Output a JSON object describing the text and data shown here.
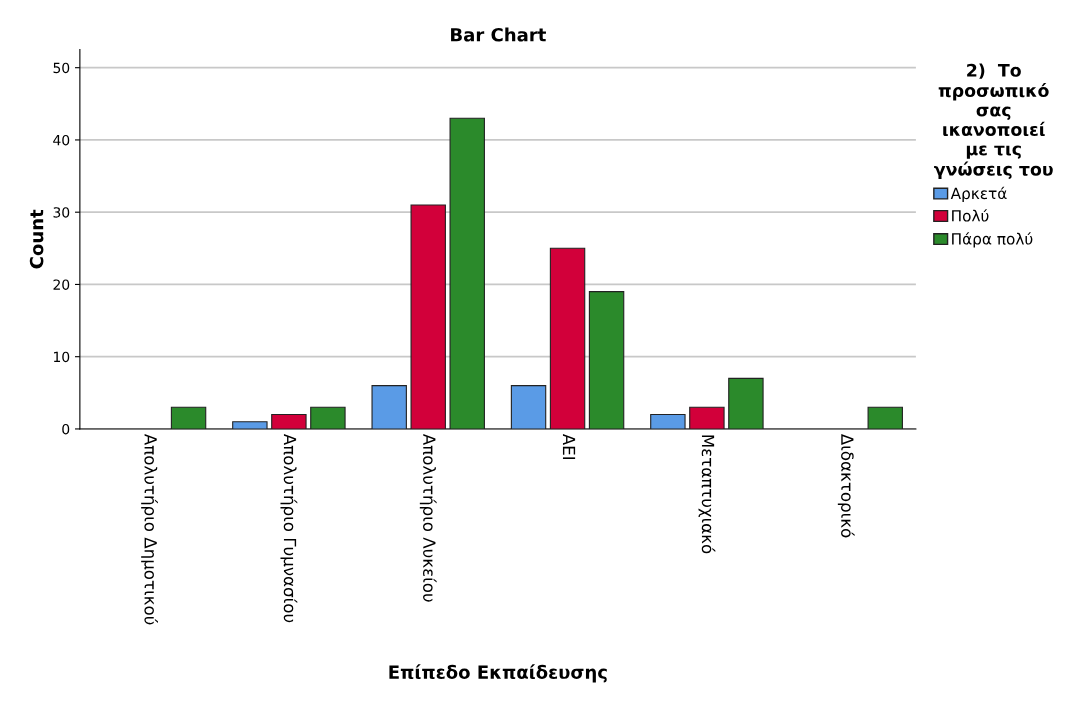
{
  "chart_data": {
    "type": "bar",
    "title": "Bar Chart",
    "xlabel": "Επίπεδο Εκπαίδευσης",
    "ylabel": "Count",
    "legend_title": "2)  Το\nπροσωπικό\nσας\nικανοποιεί\nμε τις\nγνώσεις του",
    "categories": [
      "Απολυτήριο Δημοτικού",
      "Απολυτήριο Γυμνασίου",
      "Απολυτήριο Λυκείου",
      "ΑΕΙ",
      "Μεταπτυχιακό",
      "Διδακτορικό"
    ],
    "series": [
      {
        "name": "Αρκετά",
        "color": "#5a9be6",
        "values": [
          null,
          1,
          6,
          6,
          2,
          null
        ]
      },
      {
        "name": "Πολύ",
        "color": "#d2003a",
        "values": [
          null,
          2,
          31,
          25,
          3,
          null
        ]
      },
      {
        "name": "Πάρα πολύ",
        "color": "#2b8a2b",
        "values": [
          3,
          3,
          43,
          19,
          7,
          3
        ]
      }
    ],
    "ylim": [
      0,
      52.5
    ],
    "yticks": [
      0,
      10,
      20,
      30,
      40,
      50
    ],
    "grid": "y",
    "legend": "right"
  }
}
